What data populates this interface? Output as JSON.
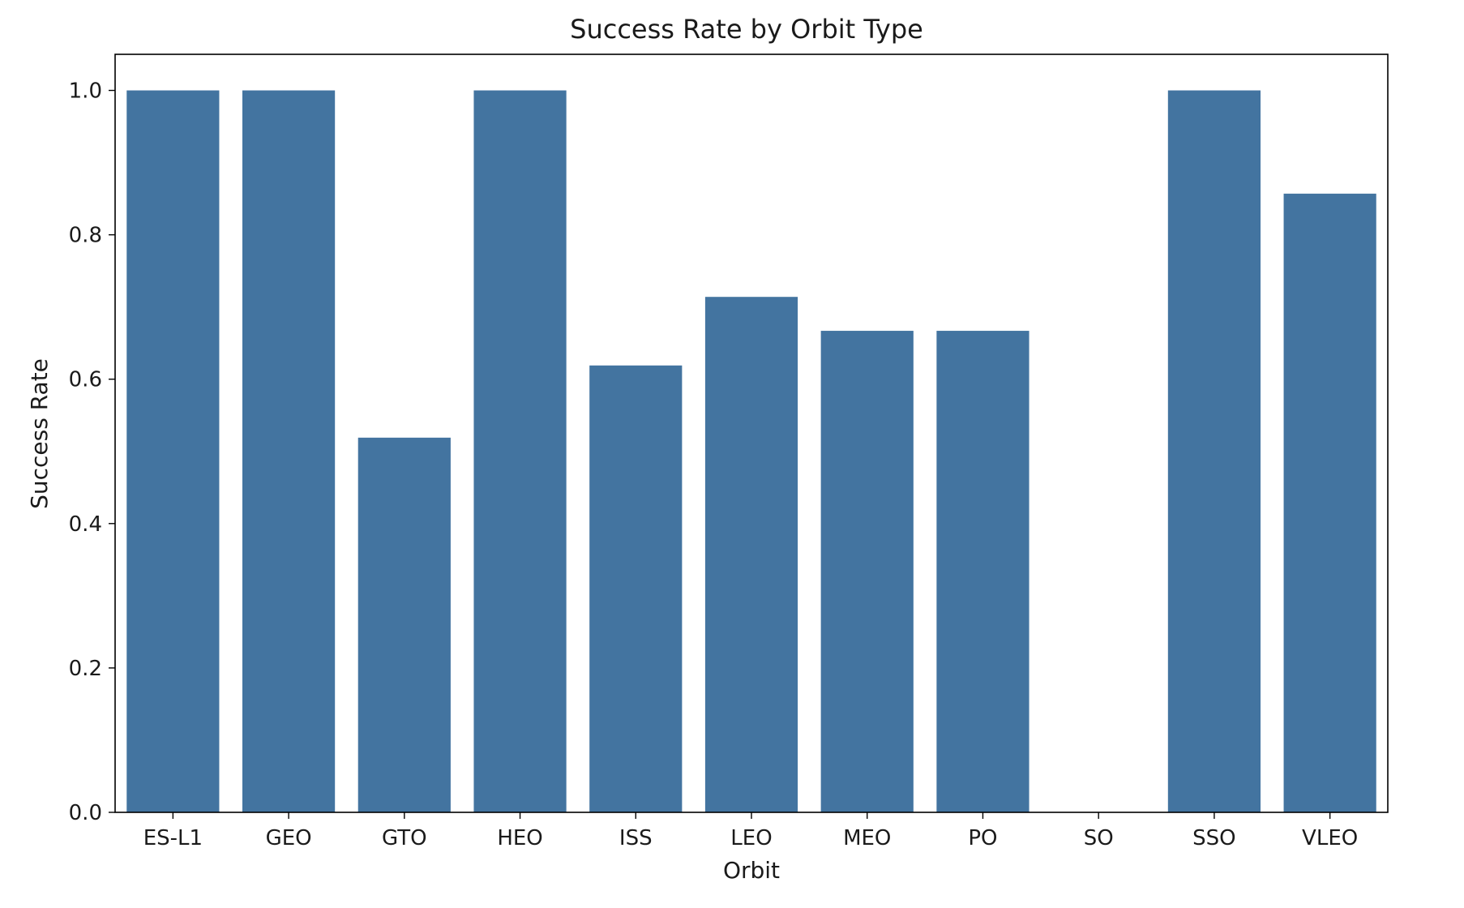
{
  "chart_data": {
    "type": "bar",
    "title": "Success Rate by Orbit Type",
    "xlabel": "Orbit",
    "ylabel": "Success Rate",
    "categories": [
      "ES-L1",
      "GEO",
      "GTO",
      "HEO",
      "ISS",
      "LEO",
      "MEO",
      "PO",
      "SO",
      "SSO",
      "VLEO"
    ],
    "values": [
      1.0,
      1.0,
      0.519,
      1.0,
      0.619,
      0.714,
      0.667,
      0.667,
      0.0,
      1.0,
      0.857
    ],
    "ylim": [
      0,
      1.05
    ],
    "yticks": [
      0.0,
      0.2,
      0.4,
      0.6,
      0.8,
      1.0
    ],
    "ytick_labels": [
      "0.0",
      "0.2",
      "0.4",
      "0.6",
      "0.8",
      "1.0"
    ],
    "bar_color": "#4374a0",
    "grid": false,
    "legend": "none"
  }
}
